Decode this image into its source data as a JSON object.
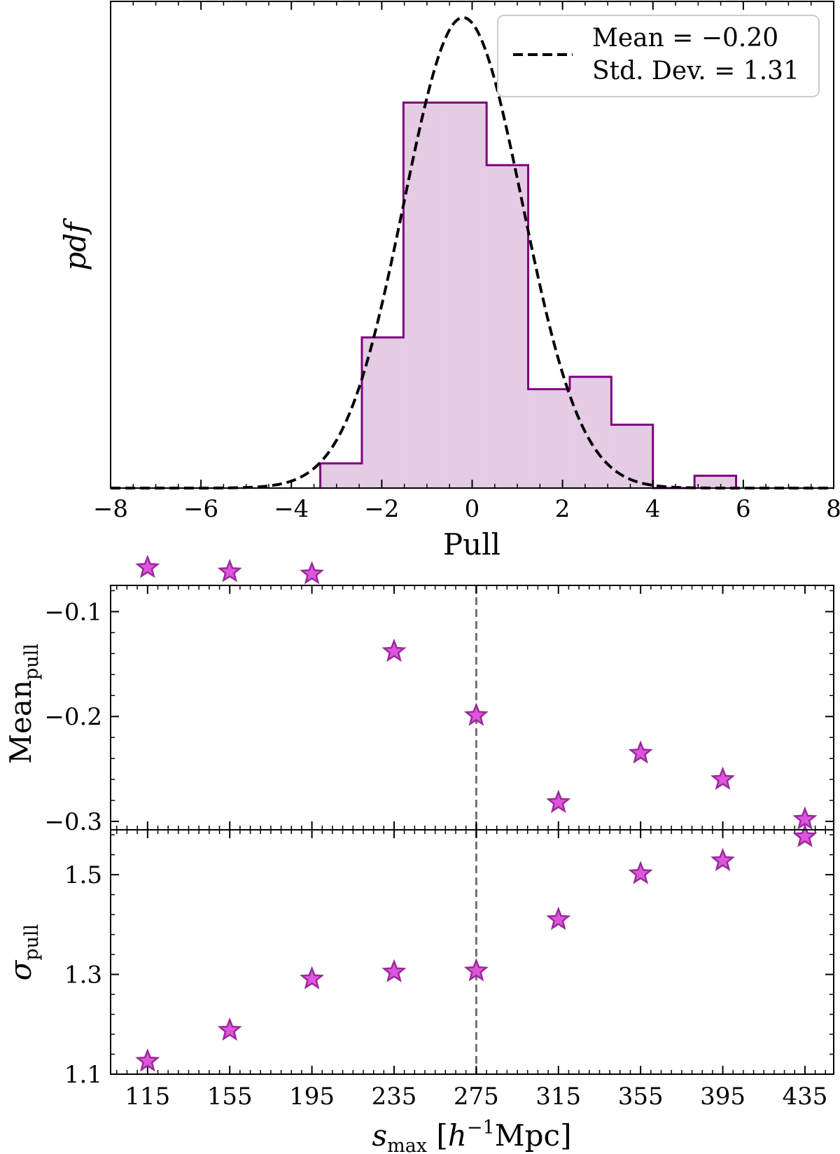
{
  "colors": {
    "hist_fill": "#e4cce4",
    "hist_edge": "#800080",
    "star_fill": "#dd55dd",
    "star_edge": "#9a2a9a",
    "curve": "#000000",
    "vline": "#707070"
  },
  "chart_data": [
    {
      "type": "bar",
      "subtype": "step-filled histogram with gaussian fit",
      "xlabel": "Pull",
      "ylabel": "pdf",
      "xlim": [
        -8,
        8
      ],
      "xticks": [
        "−8",
        "−6",
        "−4",
        "−2",
        "0",
        "2",
        "4",
        "6",
        "8"
      ],
      "xtick_values": [
        -8,
        -6,
        -4,
        -2,
        0,
        2,
        4,
        6,
        8
      ],
      "ylim": [
        0,
        0.315
      ],
      "bins": [
        {
          "x0": -3.36,
          "x1": -2.44,
          "density": 0.016
        },
        {
          "x0": -2.44,
          "x1": -1.52,
          "density": 0.0975
        },
        {
          "x0": -1.52,
          "x1": -0.6,
          "density": 0.2495
        },
        {
          "x0": -0.6,
          "x1": 0.32,
          "density": 0.2495
        },
        {
          "x0": 0.32,
          "x1": 1.24,
          "density": 0.209
        },
        {
          "x0": 1.24,
          "x1": 2.16,
          "density": 0.064
        },
        {
          "x0": 2.16,
          "x1": 3.08,
          "density": 0.072
        },
        {
          "x0": 3.08,
          "x1": 4.0,
          "density": 0.041
        },
        {
          "x0": 4.0,
          "x1": 4.92,
          "density": 0
        },
        {
          "x0": 4.92,
          "x1": 5.84,
          "density": 0.008
        }
      ],
      "fit": {
        "mean": -0.2,
        "std": 1.31
      },
      "legend": {
        "line1": "Mean = −0.20",
        "line2": "Std. Dev. = 1.31",
        "placement": "top-right"
      }
    },
    {
      "type": "scatter",
      "marker": "star",
      "x": [
        115,
        155,
        195,
        235,
        275,
        315,
        355,
        395,
        435
      ],
      "xticks": [
        "115",
        "155",
        "195",
        "235",
        "275",
        "315",
        "355",
        "395",
        "435"
      ],
      "xlim": [
        97,
        449
      ],
      "xlabel": "s_max [h^-1 Mpc]",
      "vline_x": 275,
      "panels": [
        {
          "ylabel": "Mean_pull",
          "ylim": [
            -0.308,
            -0.075
          ],
          "yticks": [
            "−0.1",
            "−0.2",
            "−0.3"
          ],
          "ytick_values": [
            -0.1,
            -0.2,
            -0.3
          ],
          "values": [
            -0.058,
            -0.062,
            -0.064,
            -0.138,
            -0.199,
            -0.282,
            -0.235,
            -0.26,
            -0.298
          ]
        },
        {
          "ylabel": "sigma_pull",
          "ylim": [
            1.1,
            1.59
          ],
          "yticks": [
            "1.1",
            "1.3",
            "1.5"
          ],
          "ytick_values": [
            1.1,
            1.3,
            1.5
          ],
          "values": [
            1.126,
            1.188,
            1.291,
            1.305,
            1.307,
            1.41,
            1.502,
            1.528,
            1.576
          ]
        }
      ]
    }
  ],
  "labels": {
    "top_ylabel": "pdf",
    "top_xlabel": "Pull",
    "mean_ylabel_main": "Mean",
    "mean_ylabel_sub": "pull",
    "sigma_ylabel_main": "σ",
    "sigma_ylabel_sub": "pull",
    "bottom_xlabel_s": "s",
    "bottom_xlabel_sub": "max",
    "bottom_xlabel_open": " [",
    "bottom_xlabel_h": "h",
    "bottom_xlabel_sup": "−1",
    "bottom_xlabel_unit": "Mpc]"
  }
}
